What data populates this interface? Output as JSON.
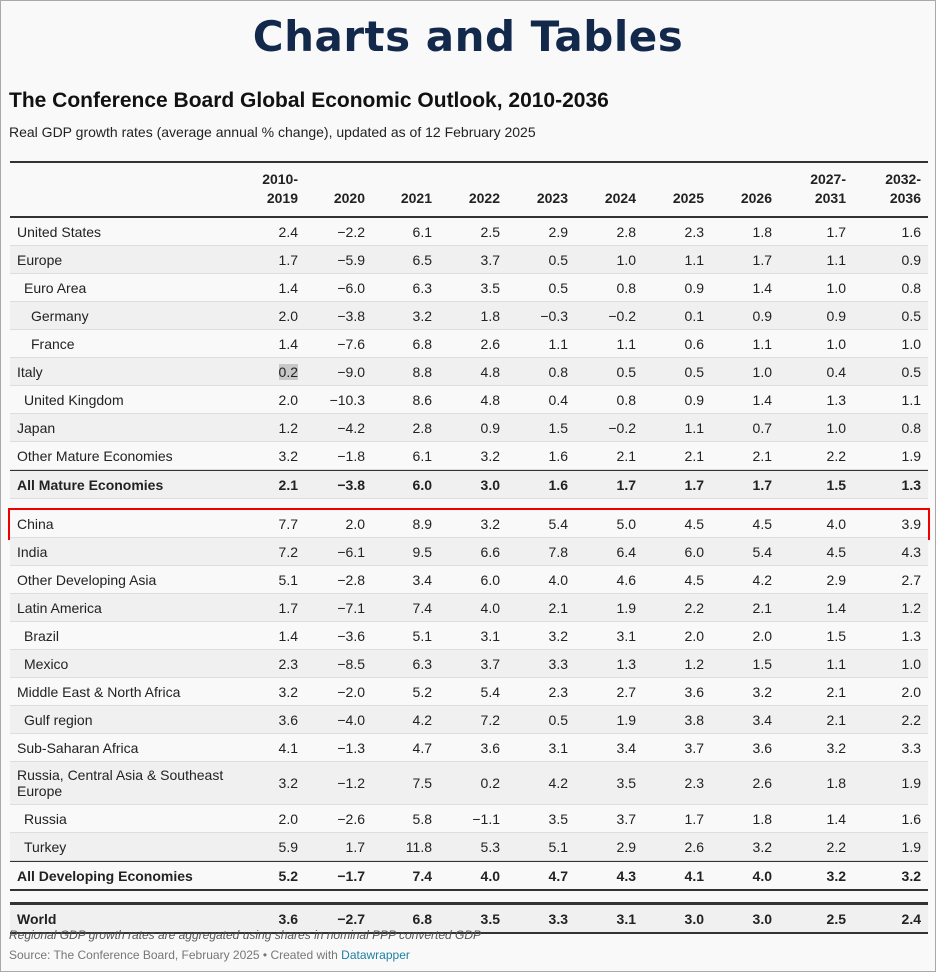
{
  "page_title": "Charts and Tables",
  "chart_title": "The Conference Board Global Economic Outlook, 2010-2036",
  "subtitle": "Real GDP growth rates (average annual % change), updated as of 12 February 2025",
  "note": "Regional GDP growth rates are aggregated using shares in nominal PPP converted GDP",
  "source_text": "Source: The Conference Board, February 2025 • Created with ",
  "source_link": "Datawrapper",
  "colors": {
    "title": "#13294b",
    "highlight_box": "#ee0000",
    "link": "#1d81a2"
  },
  "chart_data": {
    "type": "table",
    "columns": [
      [
        "2010-",
        "2019"
      ],
      [
        "",
        "2020"
      ],
      [
        "",
        "2021"
      ],
      [
        "",
        "2022"
      ],
      [
        "",
        "2023"
      ],
      [
        "",
        "2024"
      ],
      [
        "",
        "2025"
      ],
      [
        "",
        "2026"
      ],
      [
        "2027-",
        "2031"
      ],
      [
        "2032-",
        "2036"
      ]
    ],
    "rows": [
      {
        "label": "United States",
        "indent": 0,
        "values": [
          "2.4",
          "−2.2",
          "6.1",
          "2.5",
          "2.9",
          "2.8",
          "2.3",
          "1.8",
          "1.7",
          "1.6"
        ]
      },
      {
        "label": "Europe",
        "indent": 0,
        "values": [
          "1.7",
          "−5.9",
          "6.5",
          "3.7",
          "0.5",
          "1.0",
          "1.1",
          "1.7",
          "1.1",
          "0.9"
        ]
      },
      {
        "label": "Euro Area",
        "indent": 1,
        "values": [
          "1.4",
          "−6.0",
          "6.3",
          "3.5",
          "0.5",
          "0.8",
          "0.9",
          "1.4",
          "1.0",
          "0.8"
        ]
      },
      {
        "label": "Germany",
        "indent": 2,
        "values": [
          "2.0",
          "−3.8",
          "3.2",
          "1.8",
          "−0.3",
          "−0.2",
          "0.1",
          "0.9",
          "0.9",
          "0.5"
        ]
      },
      {
        "label": "France",
        "indent": 2,
        "values": [
          "1.4",
          "−7.6",
          "6.8",
          "2.6",
          "1.1",
          "1.1",
          "0.6",
          "1.1",
          "1.0",
          "1.0"
        ]
      },
      {
        "label": "Italy",
        "indent": 0,
        "values": [
          "0.2",
          "−9.0",
          "8.8",
          "4.8",
          "0.8",
          "0.5",
          "0.5",
          "1.0",
          "0.4",
          "0.5"
        ],
        "selected": true
      },
      {
        "label": "United Kingdom",
        "indent": 1,
        "values": [
          "2.0",
          "−10.3",
          "8.6",
          "4.8",
          "0.4",
          "0.8",
          "0.9",
          "1.4",
          "1.3",
          "1.1"
        ]
      },
      {
        "label": "Japan",
        "indent": 0,
        "values": [
          "1.2",
          "−4.2",
          "2.8",
          "0.9",
          "1.5",
          "−0.2",
          "1.1",
          "0.7",
          "1.0",
          "0.8"
        ]
      },
      {
        "label": "Other Mature Economies",
        "indent": 0,
        "values": [
          "3.2",
          "−1.8",
          "6.1",
          "3.2",
          "1.6",
          "2.1",
          "2.1",
          "2.1",
          "2.2",
          "1.9"
        ]
      },
      {
        "label": "All Mature Economies",
        "indent": 0,
        "bold": true,
        "values": [
          "2.1",
          "−3.8",
          "6.0",
          "3.0",
          "1.6",
          "1.7",
          "1.7",
          "1.7",
          "1.5",
          "1.3"
        ]
      },
      {
        "label": "China",
        "indent": 0,
        "highlighted": true,
        "values": [
          "7.7",
          "2.0",
          "8.9",
          "3.2",
          "5.4",
          "5.0",
          "4.5",
          "4.5",
          "4.0",
          "3.9"
        ]
      },
      {
        "label": "India",
        "indent": 0,
        "values": [
          "7.2",
          "−6.1",
          "9.5",
          "6.6",
          "7.8",
          "6.4",
          "6.0",
          "5.4",
          "4.5",
          "4.3"
        ]
      },
      {
        "label": "Other Developing Asia",
        "indent": 0,
        "values": [
          "5.1",
          "−2.8",
          "3.4",
          "6.0",
          "4.0",
          "4.6",
          "4.5",
          "4.2",
          "2.9",
          "2.7"
        ]
      },
      {
        "label": "Latin America",
        "indent": 0,
        "values": [
          "1.7",
          "−7.1",
          "7.4",
          "4.0",
          "2.1",
          "1.9",
          "2.2",
          "2.1",
          "1.4",
          "1.2"
        ]
      },
      {
        "label": "Brazil",
        "indent": 1,
        "values": [
          "1.4",
          "−3.6",
          "5.1",
          "3.1",
          "3.2",
          "3.1",
          "2.0",
          "2.0",
          "1.5",
          "1.3"
        ]
      },
      {
        "label": "Mexico",
        "indent": 1,
        "values": [
          "2.3",
          "−8.5",
          "6.3",
          "3.7",
          "3.3",
          "1.3",
          "1.2",
          "1.5",
          "1.1",
          "1.0"
        ]
      },
      {
        "label": "Middle East & North Africa",
        "indent": 0,
        "values": [
          "3.2",
          "−2.0",
          "5.2",
          "5.4",
          "2.3",
          "2.7",
          "3.6",
          "3.2",
          "2.1",
          "2.0"
        ]
      },
      {
        "label": "Gulf region",
        "indent": 1,
        "values": [
          "3.6",
          "−4.0",
          "4.2",
          "7.2",
          "0.5",
          "1.9",
          "3.8",
          "3.4",
          "2.1",
          "2.2"
        ]
      },
      {
        "label": "Sub-Saharan Africa",
        "indent": 0,
        "values": [
          "4.1",
          "−1.3",
          "4.7",
          "3.6",
          "3.1",
          "3.4",
          "3.7",
          "3.6",
          "3.2",
          "3.3"
        ]
      },
      {
        "label": "Russia, Central Asia & Southeast Europe",
        "indent": 0,
        "values": [
          "3.2",
          "−1.2",
          "7.5",
          "0.2",
          "4.2",
          "3.5",
          "2.3",
          "2.6",
          "1.8",
          "1.9"
        ]
      },
      {
        "label": "Russia",
        "indent": 1,
        "values": [
          "2.0",
          "−2.6",
          "5.8",
          "−1.1",
          "3.5",
          "3.7",
          "1.7",
          "1.8",
          "1.4",
          "1.6"
        ]
      },
      {
        "label": "Turkey",
        "indent": 1,
        "values": [
          "5.9",
          "1.7",
          "11.8",
          "5.3",
          "5.1",
          "2.9",
          "2.6",
          "3.2",
          "2.2",
          "1.9"
        ]
      },
      {
        "label": "All Developing Economies",
        "indent": 0,
        "bold": true,
        "values": [
          "5.2",
          "−1.7",
          "7.4",
          "4.0",
          "4.7",
          "4.3",
          "4.1",
          "4.0",
          "3.2",
          "3.2"
        ]
      },
      {
        "label": "World",
        "indent": 0,
        "bold": true,
        "values": [
          "3.6",
          "−2.7",
          "6.8",
          "3.5",
          "3.3",
          "3.1",
          "3.0",
          "3.0",
          "2.5",
          "2.4"
        ]
      }
    ]
  }
}
